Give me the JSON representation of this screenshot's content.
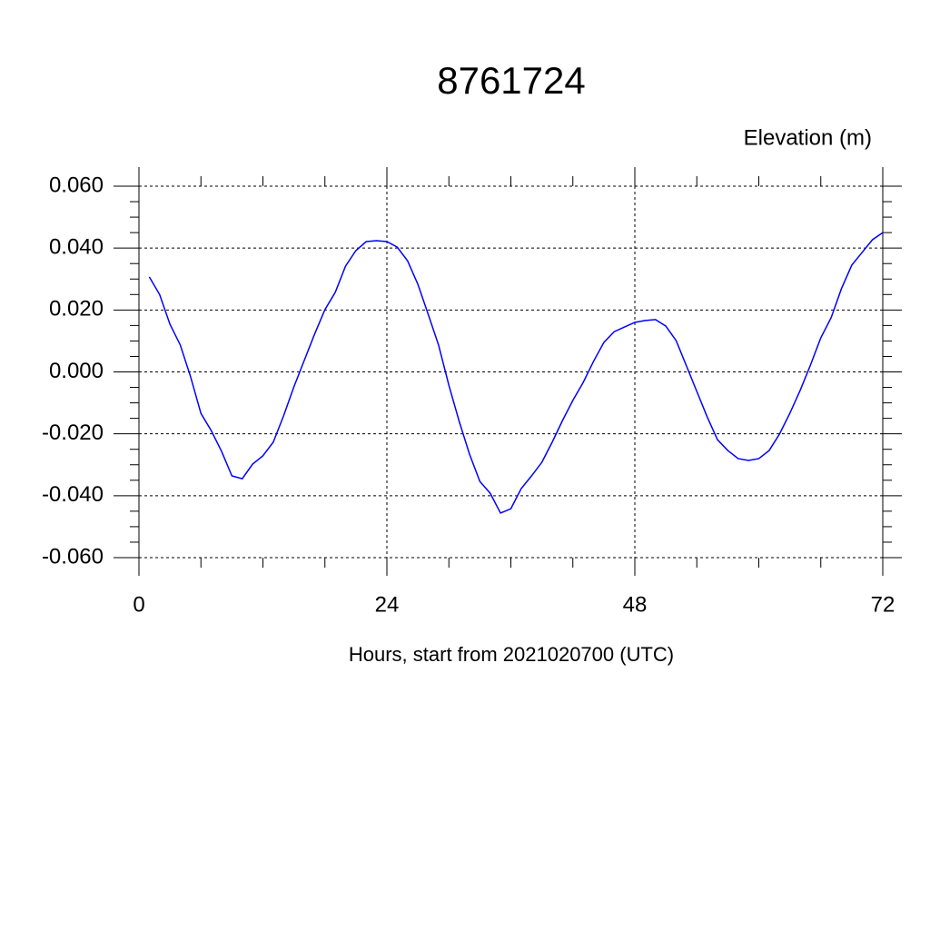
{
  "chart_data": {
    "type": "line",
    "title": "8761724",
    "y_label": "Elevation (m)",
    "x_label": "Hours, start from 2021020700 (UTC)",
    "x": [
      1,
      2,
      3,
      4,
      5,
      6,
      7,
      8,
      9,
      10,
      11,
      12,
      13,
      14,
      15,
      16,
      17,
      18,
      19,
      20,
      21,
      22,
      23,
      24,
      25,
      26,
      27,
      28,
      29,
      30,
      31,
      32,
      33,
      34,
      35,
      36,
      37,
      38,
      39,
      40,
      41,
      42,
      43,
      44,
      45,
      46,
      47,
      48,
      49,
      50,
      51,
      52,
      53,
      54,
      55,
      56,
      57,
      58,
      59,
      60,
      61,
      62,
      63,
      64,
      65,
      66,
      67,
      68,
      69,
      70,
      71,
      72
    ],
    "series": [
      {
        "color": "#0000ff",
        "values": [
          0.0307,
          0.025,
          0.0154,
          0.0087,
          -0.0016,
          -0.0134,
          -0.019,
          -0.0257,
          -0.0336,
          -0.0345,
          -0.0298,
          -0.0271,
          -0.0227,
          -0.0142,
          -0.0048,
          0.0037,
          0.0122,
          0.0201,
          0.0257,
          0.0342,
          0.0392,
          0.0421,
          0.0424,
          0.0421,
          0.0403,
          0.0359,
          0.0283,
          0.0186,
          0.0087,
          -0.0043,
          -0.016,
          -0.0266,
          -0.0354,
          -0.0392,
          -0.0456,
          -0.0442,
          -0.0377,
          -0.0336,
          -0.0292,
          -0.0227,
          -0.0157,
          -0.0092,
          -0.0034,
          0.0034,
          0.0095,
          0.013,
          0.0145,
          0.016,
          0.0166,
          0.0169,
          0.0148,
          0.0101,
          0.0019,
          -0.0063,
          -0.0145,
          -0.0219,
          -0.0254,
          -0.028,
          -0.0286,
          -0.028,
          -0.0254,
          -0.0201,
          -0.0134,
          -0.006,
          0.0022,
          0.011,
          0.0175,
          0.0269,
          0.0345,
          0.0386,
          0.0427,
          0.045
        ]
      }
    ],
    "xlim": [
      0,
      72
    ],
    "xticks": [
      0,
      24,
      48,
      72
    ],
    "xminorticks": [
      6,
      12,
      18,
      30,
      36,
      42,
      54,
      60,
      66
    ],
    "ylim": [
      -0.06,
      0.06
    ],
    "yticks": [
      {
        "value": -0.06,
        "label": "-0.060"
      },
      {
        "value": -0.04,
        "label": "-0.040"
      },
      {
        "value": -0.02,
        "label": "-0.020"
      },
      {
        "value": 0,
        "label": "0.000"
      },
      {
        "value": 0.02,
        "label": "0.020"
      },
      {
        "value": 0.04,
        "label": "0.040"
      },
      {
        "value": 0.06,
        "label": "0.060"
      }
    ],
    "yminorticks": [
      -0.055,
      -0.05,
      -0.045,
      -0.035,
      -0.03,
      -0.025,
      -0.015,
      -0.01,
      -0.005,
      0.005,
      0.01,
      0.015,
      0.025,
      0.03,
      0.035,
      0.045,
      0.05,
      0.055
    ],
    "grid": true
  }
}
